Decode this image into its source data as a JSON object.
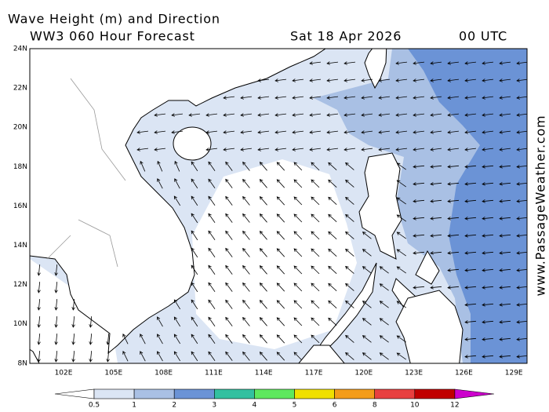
{
  "header": {
    "title": "Wave Height (m) and Direction",
    "subtitle": "WW3 060 Hour Forecast",
    "date": "Sat 18 Apr 2026",
    "time": "00 UTC"
  },
  "map": {
    "lat_labels": [
      "24N",
      "22N",
      "20N",
      "18N",
      "16N",
      "14N",
      "12N",
      "10N",
      "8N"
    ],
    "lon_labels": [
      "102E",
      "105E",
      "108E",
      "111E",
      "114E",
      "117E",
      "120E",
      "123E",
      "126E",
      "129E"
    ]
  },
  "legend": {
    "labels": [
      "0.5",
      "1",
      "2",
      "3",
      "4",
      "5",
      "6",
      "8",
      "10",
      "12"
    ],
    "colors": [
      "#ffffff",
      "#dbe5f4",
      "#a9c0e4",
      "#6b93d6",
      "#33c0a0",
      "#5ee85e",
      "#f0e000",
      "#f39c1a",
      "#e84040",
      "#c00000",
      "#cc00cc"
    ]
  },
  "watermark": "www.PassageWeather.com"
}
